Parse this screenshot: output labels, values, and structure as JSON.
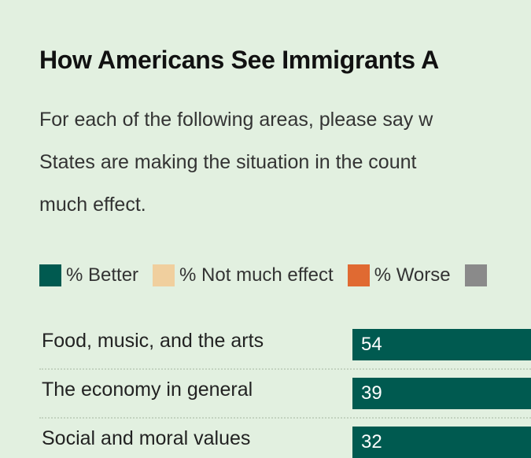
{
  "title": "How Americans See Immigrants A",
  "subtitle_lines": [
    "For each of the following areas, please say w",
    "States are making the situation in the count",
    "much effect."
  ],
  "legend": [
    {
      "label": "% Better",
      "color": "#005a50"
    },
    {
      "label": "% Not much effect",
      "color": "#f0cf9e"
    },
    {
      "label": "% Worse",
      "color": "#e06a32"
    },
    {
      "label": "",
      "color": "#8a8a8a"
    }
  ],
  "chart_data": {
    "type": "bar",
    "orientation": "horizontal",
    "stacked": true,
    "categories": [
      "Food, music, and the arts",
      "The economy in general",
      "Social and moral values"
    ],
    "series": [
      {
        "name": "% Better",
        "values": [
          54,
          39,
          32
        ],
        "color": "#005a50"
      }
    ]
  }
}
